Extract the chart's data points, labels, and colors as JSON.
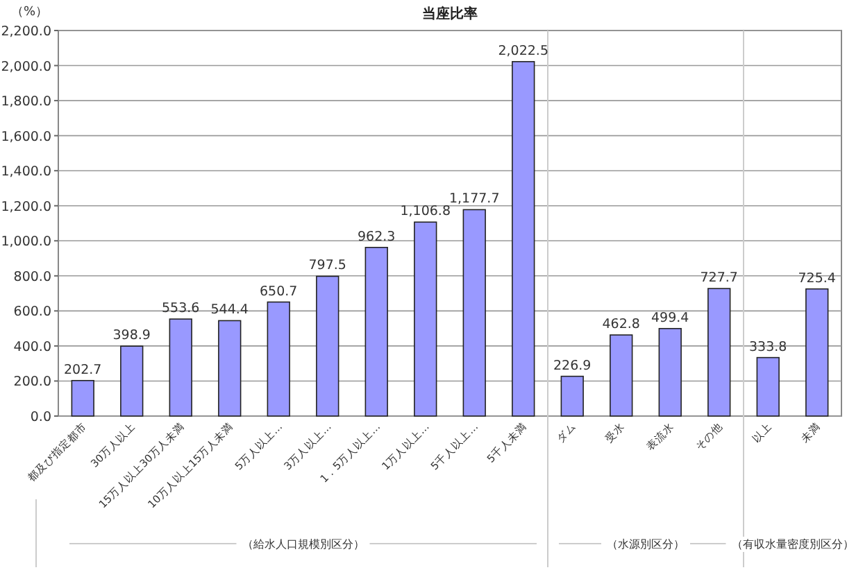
{
  "chart_data": {
    "type": "bar",
    "title": "当座比率",
    "ylabel": "（%）",
    "categories": [
      "都及び指定都市",
      "30万人以上",
      "15万人以上30万人未満",
      "10万人以上15万人未満",
      "5万人以上…",
      "3万人以上…",
      "1．5万人以上…",
      "1万人以上…",
      "5千人以上…",
      "5千人未満",
      "ダム",
      "受水",
      "表流水",
      "その他",
      "以上",
      "未満"
    ],
    "values": [
      202.7,
      398.9,
      553.6,
      544.4,
      650.7,
      797.5,
      962.3,
      1106.8,
      1177.7,
      2022.5,
      226.9,
      462.8,
      499.4,
      727.7,
      333.8,
      725.4
    ],
    "value_labels": [
      "202.7",
      "398.9",
      "553.6",
      "544.4",
      "650.7",
      "797.5",
      "962.3",
      "1,106.8",
      "1,177.7",
      "2,022.5",
      "226.9",
      "462.8",
      "499.4",
      "727.7",
      "333.8",
      "725.4"
    ],
    "color": "#9999ff",
    "ylim": [
      0,
      2200
    ],
    "yticks": [
      {
        "value": 0,
        "label": "0.0"
      },
      {
        "value": 200,
        "label": "200.0"
      },
      {
        "value": 400,
        "label": "400.0"
      },
      {
        "value": 600,
        "label": "600.0"
      },
      {
        "value": 800,
        "label": "800.0"
      },
      {
        "value": 1000,
        "label": "1,000.0"
      },
      {
        "value": 1200,
        "label": "1,200.0"
      },
      {
        "value": 1400,
        "label": "1,400.0"
      },
      {
        "value": 1600,
        "label": "1,600.0"
      },
      {
        "value": 1800,
        "label": "1,800.0"
      },
      {
        "value": 2000,
        "label": "2,000.0"
      },
      {
        "value": 2200,
        "label": "2,200.0"
      }
    ],
    "grid": "y",
    "annotations": [
      "（給水人口規模別区分）",
      "（水源別区分）",
      "（有収水量密度別区分）"
    ]
  }
}
